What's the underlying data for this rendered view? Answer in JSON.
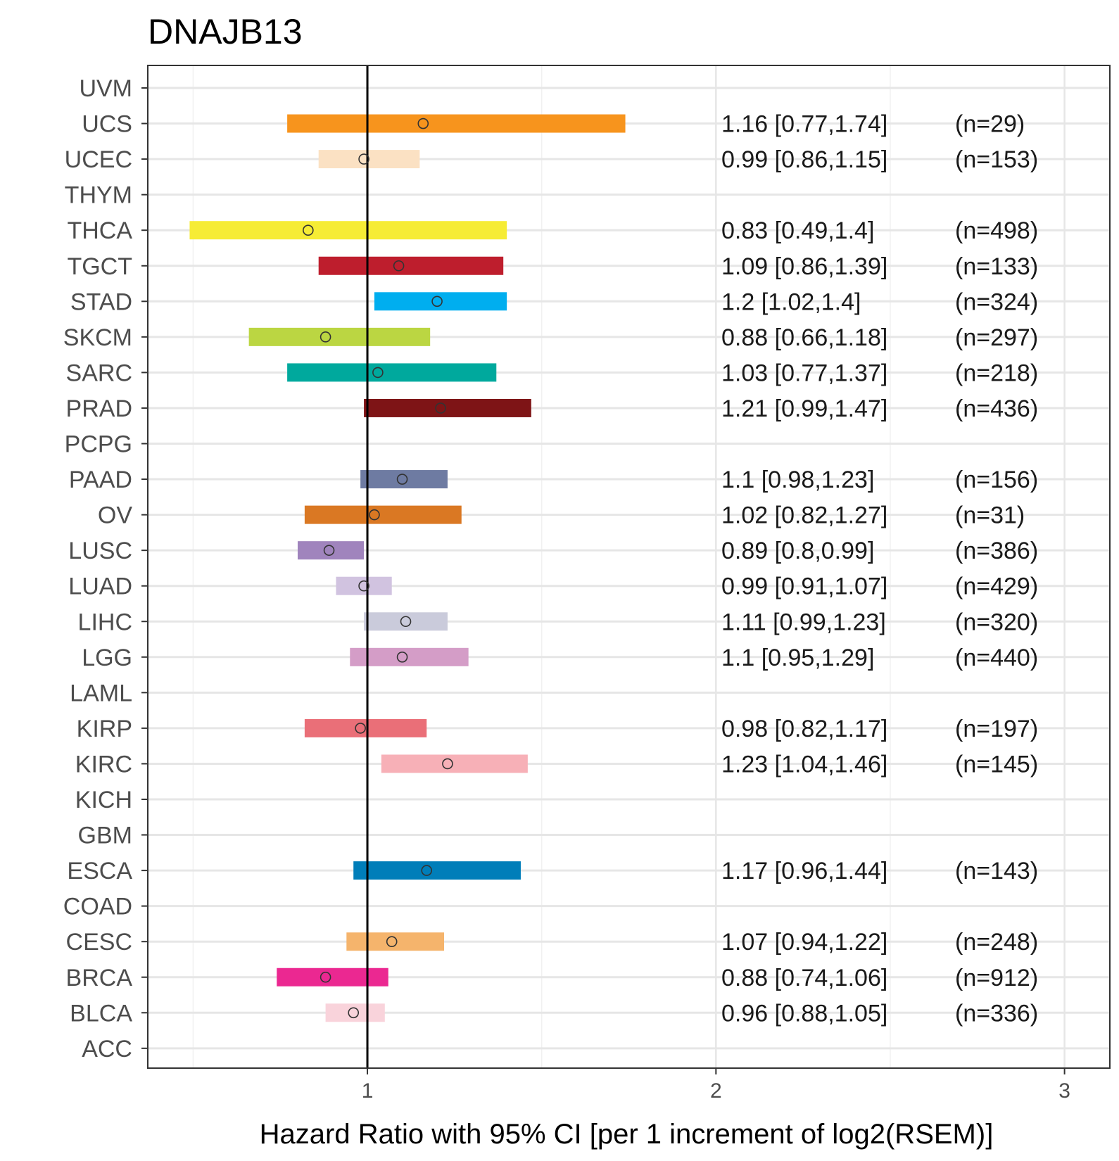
{
  "chart_data": {
    "type": "forest",
    "title": "DNAJB13",
    "xlabel": "Hazard Ratio with 95% CI [per 1 increment of log2(RSEM)]",
    "ylabel": "",
    "xlim": [
      0.37,
      3.13
    ],
    "x_ticks": [
      1,
      2,
      3
    ],
    "x_tick_labels": [
      "1",
      "2",
      "3"
    ],
    "reference_line": 1,
    "grid": true,
    "rows": [
      {
        "label": "UVM"
      },
      {
        "label": "UCS",
        "hr": 1.16,
        "lower": 0.77,
        "upper": 1.74,
        "text": "1.16 [0.77,1.74]",
        "n": "(n=29)",
        "color": "#F7941D"
      },
      {
        "label": "UCEC",
        "hr": 0.99,
        "lower": 0.86,
        "upper": 1.15,
        "text": "0.99 [0.86,1.15]",
        "n": "(n=153)",
        "color": "#FBE1C3"
      },
      {
        "label": "THYM"
      },
      {
        "label": "THCA",
        "hr": 0.83,
        "lower": 0.49,
        "upper": 1.4,
        "text": "0.83 [0.49,1.4]",
        "n": "(n=498)",
        "color": "#F6EC35"
      },
      {
        "label": "TGCT",
        "hr": 1.09,
        "lower": 0.86,
        "upper": 1.39,
        "text": "1.09 [0.86,1.39]",
        "n": "(n=133)",
        "color": "#BE1E2D"
      },
      {
        "label": "STAD",
        "hr": 1.2,
        "lower": 1.02,
        "upper": 1.4,
        "text": "1.2 [1.02,1.4]",
        "n": "(n=324)",
        "color": "#00AEEF"
      },
      {
        "label": "SKCM",
        "hr": 0.88,
        "lower": 0.66,
        "upper": 1.18,
        "text": "0.88 [0.66,1.18]",
        "n": "(n=297)",
        "color": "#BBD642"
      },
      {
        "label": "SARC",
        "hr": 1.03,
        "lower": 0.77,
        "upper": 1.37,
        "text": "1.03 [0.77,1.37]",
        "n": "(n=218)",
        "color": "#00A99D"
      },
      {
        "label": "PRAD",
        "hr": 1.21,
        "lower": 0.99,
        "upper": 1.47,
        "text": "1.21 [0.99,1.47]",
        "n": "(n=436)",
        "color": "#7E1416"
      },
      {
        "label": "PCPG"
      },
      {
        "label": "PAAD",
        "hr": 1.1,
        "lower": 0.98,
        "upper": 1.23,
        "text": "1.1 [0.98,1.23]",
        "n": "(n=156)",
        "color": "#6E7BA2"
      },
      {
        "label": "OV",
        "hr": 1.02,
        "lower": 0.82,
        "upper": 1.27,
        "text": "1.02 [0.82,1.27]",
        "n": "(n=31)",
        "color": "#DA7823"
      },
      {
        "label": "LUSC",
        "hr": 0.89,
        "lower": 0.8,
        "upper": 0.99,
        "text": "0.89 [0.8,0.99]",
        "n": "(n=386)",
        "color": "#A084BD"
      },
      {
        "label": "LUAD",
        "hr": 0.99,
        "lower": 0.91,
        "upper": 1.07,
        "text": "0.99 [0.91,1.07]",
        "n": "(n=429)",
        "color": "#D1C3E0"
      },
      {
        "label": "LIHC",
        "hr": 1.11,
        "lower": 0.99,
        "upper": 1.23,
        "text": "1.11 [0.99,1.23]",
        "n": "(n=320)",
        "color": "#CACBDB"
      },
      {
        "label": "LGG",
        "hr": 1.1,
        "lower": 0.95,
        "upper": 1.29,
        "text": "1.1 [0.95,1.29]",
        "n": "(n=440)",
        "color": "#D49DC7"
      },
      {
        "label": "LAML"
      },
      {
        "label": "KIRP",
        "hr": 0.98,
        "lower": 0.82,
        "upper": 1.17,
        "text": "0.98 [0.82,1.17]",
        "n": "(n=197)",
        "color": "#EA6F78"
      },
      {
        "label": "KIRC",
        "hr": 1.23,
        "lower": 1.04,
        "upper": 1.46,
        "text": "1.23 [1.04,1.46]",
        "n": "(n=145)",
        "color": "#F7B0B7"
      },
      {
        "label": "KICH"
      },
      {
        "label": "GBM"
      },
      {
        "label": "ESCA",
        "hr": 1.17,
        "lower": 0.96,
        "upper": 1.44,
        "text": "1.17 [0.96,1.44]",
        "n": "(n=143)",
        "color": "#007EB9"
      },
      {
        "label": "COAD"
      },
      {
        "label": "CESC",
        "hr": 1.07,
        "lower": 0.94,
        "upper": 1.22,
        "text": "1.07 [0.94,1.22]",
        "n": "(n=248)",
        "color": "#F5B46C"
      },
      {
        "label": "BRCA",
        "hr": 0.88,
        "lower": 0.74,
        "upper": 1.06,
        "text": "0.88 [0.74,1.06]",
        "n": "(n=912)",
        "color": "#EB2891"
      },
      {
        "label": "BLCA",
        "hr": 0.96,
        "lower": 0.88,
        "upper": 1.05,
        "text": "0.96 [0.88,1.05]",
        "n": "(n=336)",
        "color": "#F9D3DB"
      },
      {
        "label": "ACC"
      }
    ]
  }
}
